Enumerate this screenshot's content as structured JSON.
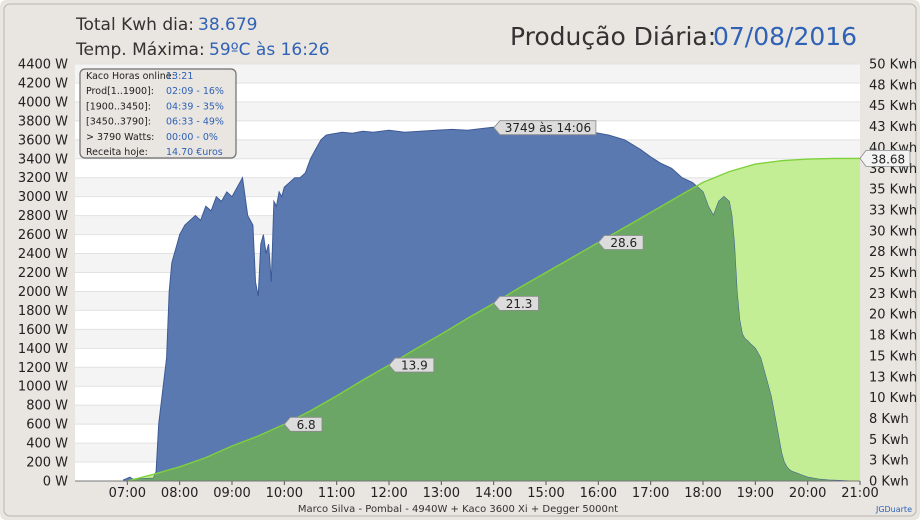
{
  "header": {
    "total_label": "Total Kwh dia:",
    "total_value": "38.679",
    "temp_label": "Temp. Máxima:",
    "temp_value": "59ºC às 16:26",
    "title_label": "Produção Diária:",
    "title_date": "07/08/2016"
  },
  "infobox": {
    "rows": [
      {
        "label": "Kaco Horas online:",
        "value": "13:21"
      },
      {
        "label": "Prod[1..1900]:",
        "value": "02:09 - 16%"
      },
      {
        "label": "[1900..3450]:",
        "value": "04:39 - 35%"
      },
      {
        "label": "[3450..3790]:",
        "value": "06:33 - 49%"
      },
      {
        "label": "> 3790 Watts:",
        "value": "00:00 - 0%"
      },
      {
        "label": "Receita hoje:",
        "value": "14.70 €uros"
      }
    ]
  },
  "footer": {
    "caption": "Marco Silva - Pombal - 4940W + Kaco 3600 Xi + Degger 5000nt",
    "credit": "JGDuarte"
  },
  "colors": {
    "background": "#e9e5e0",
    "plot_bg": "#ffffff",
    "power_fill": "#5b79b1",
    "energy_fill_green": "#6ba667",
    "energy_fill_light": "#c4ee95",
    "energy_line": "#7fd13b",
    "accent_text": "#2f62b6",
    "title_text": "#333333"
  },
  "chart_data": {
    "type": "area",
    "x_unit": "hour",
    "xlim": [
      6.0,
      21.0
    ],
    "x_ticks": [
      "07:00",
      "08:00",
      "09:00",
      "10:00",
      "11:00",
      "12:00",
      "13:00",
      "14:00",
      "15:00",
      "16:00",
      "17:00",
      "18:00",
      "19:00",
      "20:00",
      "21:00"
    ],
    "y_left": {
      "label": "W",
      "lim": [
        0,
        4400
      ],
      "ticks": [
        "0 W",
        "200 W",
        "400 W",
        "600 W",
        "800 W",
        "1000 W",
        "1200 W",
        "1400 W",
        "1600 W",
        "1800 W",
        "2000 W",
        "2200 W",
        "2400 W",
        "2600 W",
        "2800 W",
        "3000 W",
        "3200 W",
        "3400 W",
        "3600 W",
        "3800 W",
        "4000 W",
        "4200 W",
        "4400 W"
      ]
    },
    "y_right": {
      "label": "Kwh",
      "lim": [
        0,
        50
      ],
      "ticks": [
        "0 Kwh",
        "3 Kwh",
        "5 Kwh",
        "8 Kwh",
        "10 Kwh",
        "13 Kwh",
        "15 Kwh",
        "18 Kwh",
        "20 Kwh",
        "23 Kwh",
        "25 Kwh",
        "28 Kwh",
        "30 Kwh",
        "33 Kwh",
        "35 Kwh",
        "38 Kwh",
        "40 Kwh",
        "43 Kwh",
        "45 Kwh",
        "48 Kwh",
        "50 Kwh"
      ]
    },
    "series": [
      {
        "axis": "left",
        "x": [
          6.92,
          7.05,
          7.1,
          7.5,
          7.55,
          7.6,
          7.75,
          7.8,
          7.85,
          7.9,
          7.95,
          8.0,
          8.1,
          8.2,
          8.3,
          8.4,
          8.5,
          8.6,
          8.7,
          8.8,
          8.9,
          9.0,
          9.1,
          9.15,
          9.2,
          9.25,
          9.3,
          9.4,
          9.45,
          9.5,
          9.55,
          9.6,
          9.65,
          9.7,
          9.75,
          9.8,
          9.85,
          9.9,
          9.95,
          10.0,
          10.1,
          10.2,
          10.3,
          10.4,
          10.5,
          10.6,
          10.7,
          10.8,
          10.9,
          11.0,
          11.1,
          11.3,
          11.5,
          11.7,
          12.0,
          12.3,
          12.6,
          12.9,
          13.2,
          13.5,
          13.8,
          14.1,
          14.4,
          14.7,
          15.0,
          15.3,
          15.6,
          15.9,
          16.2,
          16.5,
          16.8,
          17.0,
          17.2,
          17.4,
          17.6,
          17.8,
          17.9,
          18.0,
          18.1,
          18.2,
          18.3,
          18.4,
          18.5,
          18.55,
          18.6,
          18.65,
          18.7,
          18.75,
          18.8,
          18.85,
          18.9,
          19.0,
          19.1,
          19.2,
          19.3,
          19.4,
          19.5,
          19.55,
          19.6,
          19.65,
          19.7,
          19.8,
          19.9,
          20.0,
          20.2,
          20.4,
          20.6,
          20.8,
          21.0
        ],
        "values": [
          10,
          40,
          20,
          30,
          100,
          600,
          1300,
          2000,
          2300,
          2400,
          2500,
          2600,
          2700,
          2750,
          2800,
          2750,
          2900,
          2850,
          3000,
          2950,
          3050,
          3000,
          3100,
          3150,
          3200,
          3000,
          2800,
          2700,
          2100,
          1950,
          2500,
          2600,
          2400,
          2500,
          2100,
          2950,
          2900,
          3050,
          3000,
          3100,
          3150,
          3200,
          3200,
          3250,
          3400,
          3500,
          3600,
          3650,
          3660,
          3670,
          3680,
          3670,
          3690,
          3680,
          3700,
          3680,
          3690,
          3700,
          3710,
          3700,
          3720,
          3740,
          3749,
          3730,
          3720,
          3700,
          3690,
          3680,
          3650,
          3600,
          3500,
          3420,
          3350,
          3300,
          3200,
          3150,
          3100,
          3050,
          2900,
          2800,
          2950,
          3000,
          2950,
          2800,
          2500,
          2000,
          1700,
          1550,
          1500,
          1480,
          1450,
          1400,
          1300,
          1100,
          900,
          600,
          300,
          200,
          150,
          120,
          100,
          80,
          60,
          40,
          20,
          10,
          5,
          0,
          0
        ],
        "peak": {
          "label": "3749 às 14:06",
          "x": 14.1,
          "y": 3749
        }
      },
      {
        "axis": "right",
        "x": [
          7.0,
          7.5,
          8.0,
          8.5,
          9.0,
          9.5,
          10.0,
          10.5,
          11.0,
          11.5,
          12.0,
          12.5,
          13.0,
          13.5,
          14.0,
          14.5,
          15.0,
          15.5,
          16.0,
          16.5,
          17.0,
          17.5,
          18.0,
          18.5,
          19.0,
          19.5,
          20.0,
          20.5,
          21.0
        ],
        "values": [
          0,
          0.8,
          1.7,
          2.8,
          4.2,
          5.4,
          6.8,
          8.4,
          10.2,
          12.1,
          13.9,
          15.8,
          17.6,
          19.5,
          21.3,
          23.2,
          25.0,
          26.8,
          28.6,
          30.4,
          32.2,
          34.0,
          35.8,
          37.1,
          38.0,
          38.4,
          38.6,
          38.68,
          38.68
        ],
        "labels": [
          {
            "x": 10.0,
            "text": "6.8"
          },
          {
            "x": 12.0,
            "text": "13.9"
          },
          {
            "x": 14.0,
            "text": "21.3"
          },
          {
            "x": 16.0,
            "text": "28.6"
          }
        ],
        "end_label": "38.68"
      }
    ]
  }
}
